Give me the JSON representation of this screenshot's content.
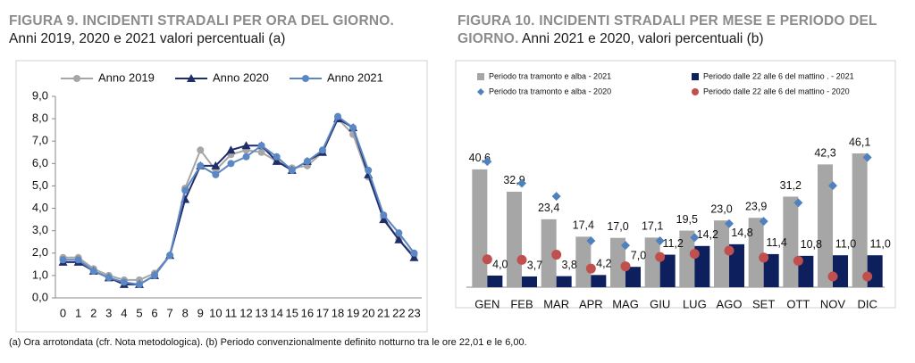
{
  "chart_data": [
    {
      "type": "line",
      "title": "FIGURA 9. INCIDENTI STRADALI PER ORA DEL GIORNO.",
      "subtitle": "Anni 2019, 2020 e 2021 valori percentuali (a)",
      "categories": [
        "0",
        "1",
        "2",
        "3",
        "4",
        "5",
        "6",
        "7",
        "8",
        "9",
        "10",
        "11",
        "12",
        "13",
        "14",
        "15",
        "16",
        "17",
        "18",
        "19",
        "20",
        "21",
        "22",
        "23"
      ],
      "series": [
        {
          "name": "Anno 2019",
          "color": "#a6a6a6",
          "marker": "circle",
          "values": [
            1.8,
            1.8,
            1.3,
            1.0,
            0.8,
            0.8,
            1.1,
            1.9,
            4.9,
            6.6,
            5.7,
            6.4,
            6.6,
            6.5,
            6.1,
            5.8,
            5.9,
            6.5,
            8.0,
            7.3,
            5.4,
            3.6,
            2.6,
            1.9
          ]
        },
        {
          "name": "Anno 2020",
          "color": "#1f2d6b",
          "marker": "triangle",
          "values": [
            1.6,
            1.6,
            1.2,
            0.9,
            0.6,
            0.6,
            1.0,
            1.9,
            4.4,
            5.9,
            5.9,
            6.6,
            6.8,
            6.8,
            6.1,
            5.7,
            6.1,
            6.5,
            8.0,
            7.6,
            5.5,
            3.5,
            2.6,
            1.8
          ]
        },
        {
          "name": "Anno 2021",
          "color": "#5b87c5",
          "marker": "circle",
          "values": [
            1.7,
            1.7,
            1.2,
            0.9,
            0.7,
            0.6,
            1.0,
            1.9,
            4.8,
            5.9,
            5.5,
            6.0,
            6.3,
            6.8,
            6.3,
            5.7,
            6.1,
            6.6,
            8.1,
            7.6,
            5.7,
            3.7,
            2.9,
            2.0
          ]
        }
      ],
      "ylim": [
        0,
        9
      ],
      "yticks": [
        {
          "value": 0,
          "label": "0,0"
        },
        {
          "value": 1,
          "label": "1,0"
        },
        {
          "value": 2,
          "label": "2,0"
        },
        {
          "value": 3,
          "label": "3,0"
        },
        {
          "value": 4,
          "label": "4,0"
        },
        {
          "value": 5,
          "label": "5,0"
        },
        {
          "value": 6,
          "label": "6,0"
        },
        {
          "value": 7,
          "label": "7,0"
        },
        {
          "value": 8,
          "label": "8,0"
        },
        {
          "value": 9,
          "label": "9,0"
        }
      ],
      "legend": "top",
      "grid": false
    },
    {
      "type": "bar",
      "title": "FIGURA 10. INCIDENTI STRADALI PER MESE E PERIODO DEL GIORNO.",
      "subtitle": "Anni 2021 e 2020, valori percentuali (b)",
      "categories": [
        "GEN",
        "FEB",
        "MAR",
        "APR",
        "MAG",
        "GIU",
        "LUG",
        "AGO",
        "SET",
        "OTT",
        "NOV",
        "DIC"
      ],
      "series": [
        {
          "name": "Periodo tra tramonto e alba - 2021",
          "type": "bar",
          "color": "#a6a6a6",
          "values": [
            40.6,
            32.9,
            23.4,
            17.4,
            17.0,
            17.1,
            19.5,
            23.0,
            23.9,
            31.2,
            42.3,
            46.1
          ],
          "value_labels": [
            "40,6",
            "32,9",
            "23,4",
            "17,4",
            "17,0",
            "17,1",
            "19,5",
            "23,0",
            "23,9",
            "31,2",
            "42,3",
            "46,1"
          ]
        },
        {
          "name": "Periodo dalle 22 alle 6 del mattino . - 2021",
          "type": "bar",
          "color": "#0d1f5c",
          "values": [
            4.0,
            3.7,
            3.8,
            4.2,
            7.0,
            11.2,
            14.2,
            14.8,
            11.4,
            10.8,
            11.0,
            11.0
          ],
          "value_labels": [
            "4,0",
            "3,7",
            "3,8",
            "4,2",
            "7,0",
            "11,2",
            "14,2",
            "14,8",
            "11,4",
            "10,8",
            "11,0",
            "11,0"
          ]
        },
        {
          "name": "Periodo tra tramonto e alba - 2020",
          "type": "scatter",
          "marker": "diamond",
          "color": "#4f81bd",
          "values": [
            43.3,
            35.8,
            31.3,
            16.0,
            14.4,
            16.0,
            17.1,
            21.9,
            22.7,
            29.1,
            35.0,
            44.7
          ]
        },
        {
          "name": "Periodo dalle 22 alle 6 del mattino - 2020",
          "type": "scatter",
          "marker": "circle",
          "color": "#c0504d",
          "values": [
            9.6,
            9.4,
            11.2,
            6.4,
            7.2,
            10.4,
            11.5,
            12.6,
            10.2,
            9.1,
            3.7,
            3.7
          ]
        }
      ],
      "legend": "top"
    }
  ],
  "footnote": "(a)   Ora arrotondata (cfr. Nota metodologica). (b) Periodo convenzionalmente definito notturno tra le ore 22,01 e le 6,00."
}
